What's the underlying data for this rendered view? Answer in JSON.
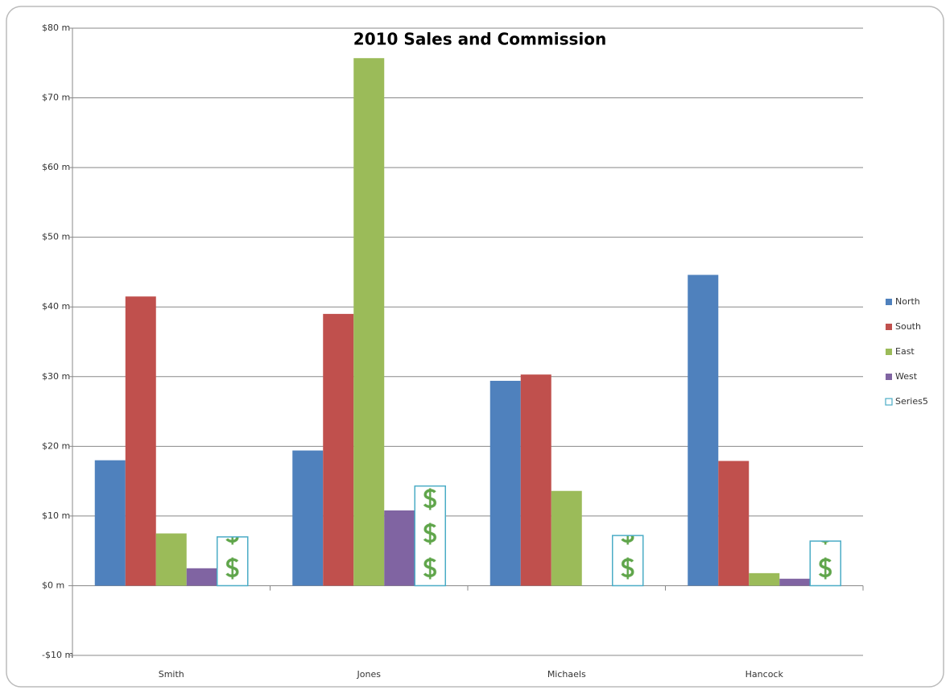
{
  "chart_data": {
    "type": "bar",
    "title": "2010 Sales and Commission",
    "categories": [
      "Smith",
      "Jones",
      "Michaels",
      "Hancock"
    ],
    "series": [
      {
        "name": "North",
        "color": "#4f81bd",
        "values": [
          18,
          19.4,
          29.4,
          44.6
        ]
      },
      {
        "name": "South",
        "color": "#c0504d",
        "values": [
          41.5,
          39,
          30.3,
          17.9
        ]
      },
      {
        "name": "East",
        "color": "#9bbb59",
        "values": [
          7.5,
          75.7,
          13.6,
          1.8
        ]
      },
      {
        "name": "West",
        "color": "#8064a2",
        "values": [
          2.5,
          10.8,
          0,
          1
        ]
      },
      {
        "name": "Series5",
        "color": "#4bacc6",
        "values": [
          7,
          14.3,
          7.2,
          6.4
        ]
      }
    ],
    "ylim": [
      -10,
      80
    ],
    "yticks": [
      {
        "value": -10,
        "label": "-$10 m"
      },
      {
        "value": 0,
        "label": "$0 m"
      },
      {
        "value": 10,
        "label": "$10 m"
      },
      {
        "value": 20,
        "label": "$20 m"
      },
      {
        "value": 30,
        "label": "$30 m"
      },
      {
        "value": 40,
        "label": "$40 m"
      },
      {
        "value": 50,
        "label": "$50 m"
      },
      {
        "value": 60,
        "label": "$60 m"
      },
      {
        "value": 70,
        "label": "$70 m"
      },
      {
        "value": 80,
        "label": "$80 m"
      }
    ],
    "grid": true,
    "legend": "right"
  }
}
